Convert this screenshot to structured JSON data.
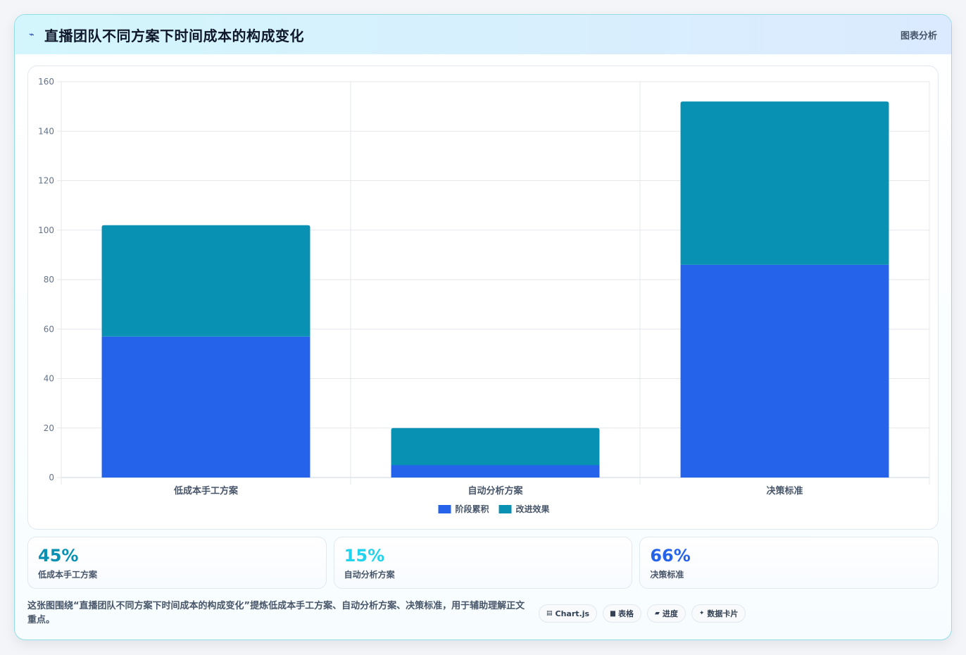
{
  "header": {
    "title": "直播团队不同方案下时间成本的构成变化",
    "tag": "图表分析"
  },
  "chart_data": {
    "type": "bar",
    "stacked": true,
    "categories": [
      "低成本手工方案",
      "自动分析方案",
      "决策标准"
    ],
    "series": [
      {
        "name": "阶段累积",
        "values": [
          57,
          5,
          86
        ],
        "color": "#2563eb"
      },
      {
        "name": "改进效果",
        "values": [
          45,
          15,
          66
        ],
        "color": "#0891b2"
      }
    ],
    "ylim": [
      0,
      160
    ],
    "yticks": [
      0,
      20,
      40,
      60,
      80,
      100,
      120,
      140,
      160
    ],
    "grid": true,
    "legend": "bottom"
  },
  "stats": [
    {
      "value": "45%",
      "label": "低成本手工方案",
      "color": "#0891b2"
    },
    {
      "value": "15%",
      "label": "自动分析方案",
      "color": "#22d3ee"
    },
    {
      "value": "66%",
      "label": "决策标准",
      "color": "#2563eb"
    }
  ],
  "footer": {
    "text": "这张图围绕“直播团队不同方案下时间成本的构成变化”提炼低成本手工方案、自动分析方案、决策标准，用于辅助理解正文重点。",
    "chips": [
      {
        "icon": "chart-icon",
        "label": "Chart.js"
      },
      {
        "icon": "table-icon",
        "label": "表格"
      },
      {
        "icon": "progress-icon",
        "label": "进度"
      },
      {
        "icon": "card-icon",
        "label": "数据卡片"
      }
    ]
  }
}
